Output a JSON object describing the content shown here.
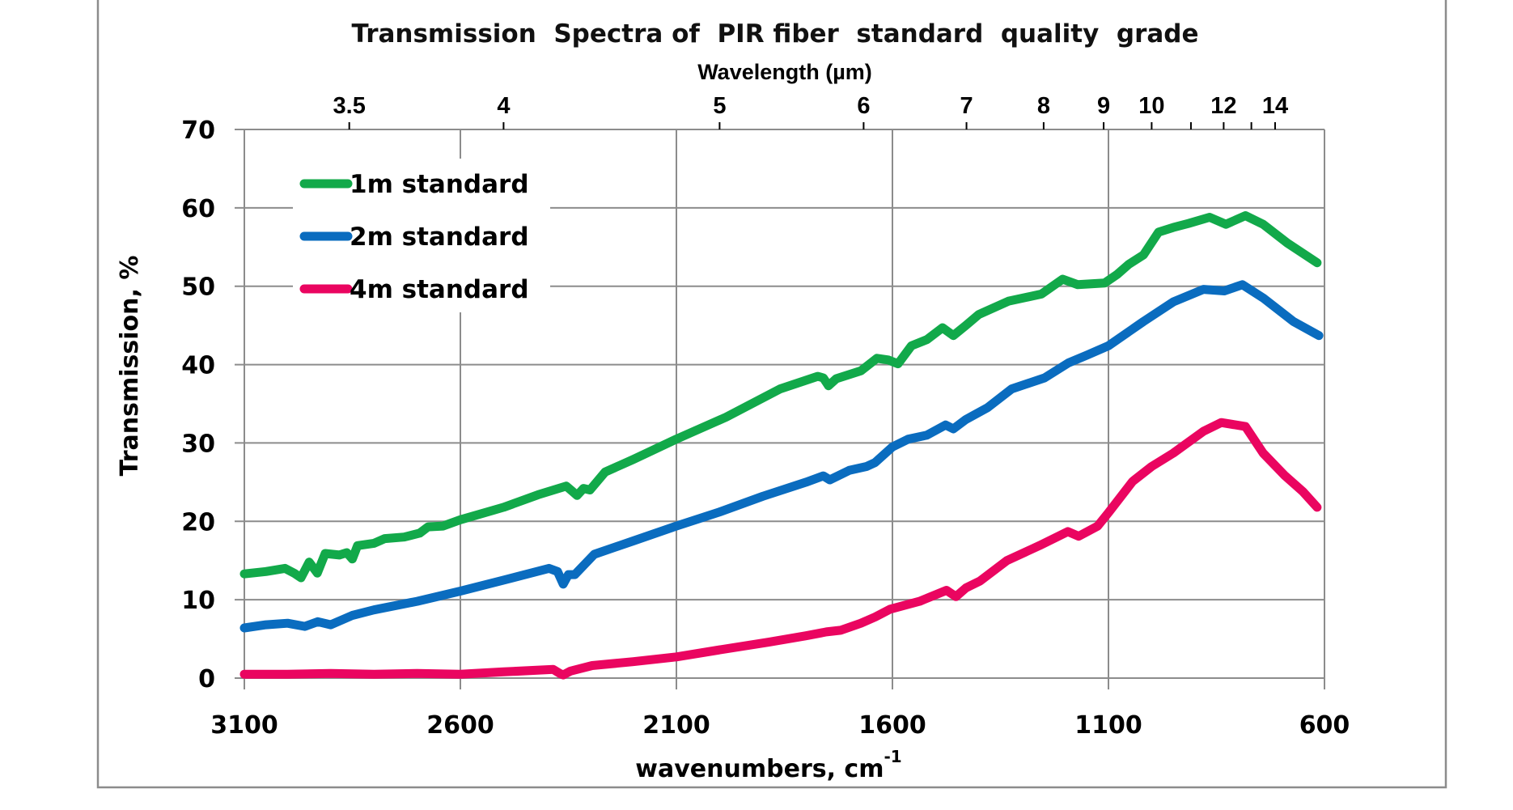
{
  "chart_data": {
    "type": "line",
    "title": "Transmission  Spectra of  PIR fiber  standard  quality  grade",
    "xlabel": "wavenumbers, cm",
    "xlabel_superscript": "-1",
    "ylabel": "Transmission, %",
    "top_axis_label": "Wavelength (µm)",
    "xlim": [
      3100,
      600
    ],
    "ylim": [
      0,
      70
    ],
    "x_reversed": true,
    "grid": true,
    "legend_position": "top-left",
    "x_ticks": [
      3100,
      2600,
      2100,
      1600,
      1100,
      600
    ],
    "x_tick_labels": [
      "3100",
      "2600",
      "2100",
      "1600",
      "1100",
      "600"
    ],
    "y_ticks": [
      0,
      10,
      20,
      30,
      40,
      50,
      60,
      70
    ],
    "y_tick_labels": [
      "0",
      "10",
      "20",
      "30",
      "40",
      "50",
      "60",
      "70"
    ],
    "top_ticks_um": [
      3.5,
      4,
      5,
      6,
      7,
      8,
      9,
      10,
      11,
      12,
      13,
      14
    ],
    "top_tick_labels": [
      {
        "um": 3.5,
        "label": "3.5"
      },
      {
        "um": 4,
        "label": "4"
      },
      {
        "um": 5,
        "label": "5"
      },
      {
        "um": 6,
        "label": "6"
      },
      {
        "um": 7,
        "label": "7"
      },
      {
        "um": 8,
        "label": "8"
      },
      {
        "um": 9,
        "label": "9"
      },
      {
        "um": 10,
        "label": "10"
      },
      {
        "um": 12,
        "label": "12"
      },
      {
        "um": 14,
        "label": "14"
      }
    ],
    "series": [
      {
        "name": "1m standard",
        "color": "#12a94a",
        "x": [
          3100,
          3050,
          3006,
          2985,
          2969,
          2950,
          2931,
          2913,
          2880,
          2863,
          2850,
          2838,
          2800,
          2775,
          2730,
          2694,
          2675,
          2640,
          2600,
          2500,
          2420,
          2355,
          2340,
          2330,
          2315,
          2300,
          2265,
          2200,
          2100,
          1985,
          1860,
          1773,
          1760,
          1748,
          1730,
          1673,
          1636,
          1610,
          1587,
          1556,
          1520,
          1484,
          1459,
          1430,
          1400,
          1331,
          1255,
          1206,
          1171,
          1140,
          1109,
          1080,
          1053,
          1019,
          984,
          950,
          915,
          866,
          828,
          783,
          742,
          686,
          617
        ],
        "y": [
          13.3,
          13.6,
          14.0,
          13.4,
          12.8,
          14.8,
          13.4,
          15.9,
          15.7,
          16.0,
          15.2,
          16.9,
          17.2,
          17.8,
          18.0,
          18.5,
          19.3,
          19.4,
          20.2,
          21.8,
          23.4,
          24.5,
          23.8,
          23.3,
          24.2,
          24.0,
          26.3,
          27.9,
          30.5,
          33.3,
          36.9,
          38.5,
          38.3,
          37.3,
          38.2,
          39.2,
          40.8,
          40.6,
          40.1,
          42.4,
          43.2,
          44.7,
          43.7,
          45.0,
          46.4,
          48.1,
          49.0,
          50.9,
          50.2,
          50.3,
          50.4,
          51.5,
          52.8,
          54.0,
          56.9,
          57.5,
          58.0,
          58.8,
          57.9,
          59.0,
          57.9,
          55.5,
          53.0
        ]
      },
      {
        "name": "2m standard",
        "color": "#0a6cbf",
        "x": [
          3100,
          3050,
          3000,
          2960,
          2930,
          2900,
          2850,
          2800,
          2700,
          2600,
          2500,
          2395,
          2375,
          2362,
          2350,
          2335,
          2290,
          2200,
          2100,
          2000,
          1900,
          1800,
          1760,
          1745,
          1700,
          1660,
          1640,
          1600,
          1563,
          1520,
          1477,
          1459,
          1430,
          1380,
          1324,
          1248,
          1193,
          1150,
          1100,
          1019,
          950,
          880,
          832,
          790,
          742,
          672,
          613
        ],
        "y": [
          6.4,
          6.8,
          7.0,
          6.6,
          7.2,
          6.8,
          8.0,
          8.7,
          9.8,
          11.1,
          12.5,
          14.0,
          13.6,
          12.0,
          13.2,
          13.2,
          15.8,
          17.5,
          19.4,
          21.2,
          23.2,
          25.0,
          25.8,
          25.3,
          26.5,
          27.0,
          27.5,
          29.5,
          30.5,
          31.0,
          32.3,
          31.8,
          33.0,
          34.5,
          36.9,
          38.3,
          40.2,
          41.2,
          42.4,
          45.5,
          48.0,
          49.6,
          49.4,
          50.2,
          48.5,
          45.5,
          43.7
        ]
      },
      {
        "name": "4m standard",
        "color": "#ea0560",
        "x": [
          3100,
          3000,
          2900,
          2800,
          2700,
          2600,
          2500,
          2385,
          2370,
          2362,
          2345,
          2295,
          2200,
          2100,
          2000,
          1885,
          1800,
          1753,
          1720,
          1673,
          1640,
          1605,
          1537,
          1475,
          1453,
          1430,
          1397,
          1335,
          1260,
          1194,
          1169,
          1125,
          1100,
          1044,
          1000,
          950,
          880,
          839,
          783,
          742,
          693,
          650,
          617
        ],
        "y": [
          0.5,
          0.5,
          0.6,
          0.5,
          0.6,
          0.5,
          0.8,
          1.1,
          0.6,
          0.4,
          0.9,
          1.6,
          2.1,
          2.7,
          3.6,
          4.6,
          5.4,
          5.9,
          6.1,
          7.0,
          7.8,
          8.8,
          9.8,
          11.2,
          10.4,
          11.5,
          12.4,
          15.0,
          16.9,
          18.7,
          18.1,
          19.4,
          21.1,
          25.1,
          27.0,
          28.7,
          31.5,
          32.6,
          32.1,
          28.7,
          25.9,
          23.8,
          21.8
        ]
      }
    ]
  }
}
